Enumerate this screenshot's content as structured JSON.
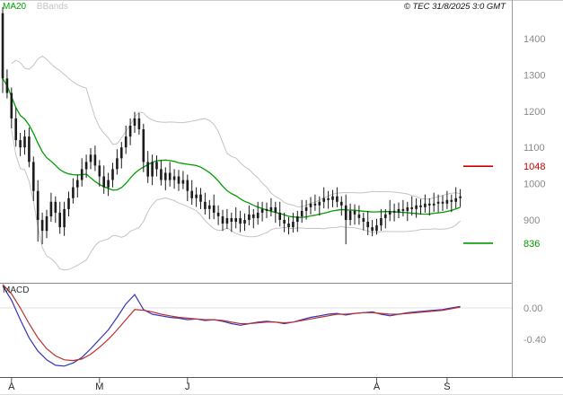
{
  "meta": {
    "copyright": "© TEC 31/8/2025 3:0 GMT"
  },
  "legend": {
    "ma20": "MA20",
    "bbands": "BBands",
    "macd": "MACD"
  },
  "colors": {
    "candle": "#1c1c1c",
    "ma20": "#00a000",
    "bbands": "#c4c4c4",
    "macd_blue": "#3333bb",
    "macd_red": "#bb3030",
    "level_red": "#cc0000",
    "level_green": "#009900",
    "axis_text": "#8a8a8a",
    "month_text": "#222222"
  },
  "chart_data": [
    {
      "type": "candlestick",
      "title": "",
      "y_axis": {
        "ticks": [
          1400,
          1300,
          1200,
          1100,
          1000,
          900
        ],
        "range": [
          760,
          1505
        ]
      },
      "x_axis": {
        "months": [
          {
            "label": "A",
            "index": 2
          },
          {
            "label": "M",
            "index": 22
          },
          {
            "label": "J",
            "index": 42
          },
          {
            "label": "A",
            "index": 85
          },
          {
            "label": "S",
            "index": 101
          }
        ]
      },
      "levels": [
        {
          "name": "resistance",
          "label": "1048",
          "value": 1048,
          "color_key": "level_red"
        },
        {
          "name": "support",
          "label": "836",
          "value": 836,
          "color_key": "level_green"
        }
      ],
      "overlays": [
        {
          "name": "MA20",
          "period": 20
        },
        {
          "name": "BBands",
          "period": 20,
          "stdev_mult": 2
        }
      ],
      "ohlc": {
        "open": [
          1470,
          1290,
          1250,
          1180,
          1120,
          1100,
          1130,
          1060,
          980,
          900,
          870,
          910,
          950,
          920,
          880,
          930,
          960,
          990,
          1010,
          1040,
          1060,
          1080,
          1050,
          1020,
          990,
          1010,
          1040,
          1070,
          1100,
          1130,
          1160,
          1180,
          1150,
          1060,
          1020,
          1060,
          1040,
          1010,
          1030,
          1010,
          1020,
          1000,
          1010,
          980,
          960,
          970,
          950,
          930,
          940,
          920,
          910,
          890,
          905,
          895,
          905,
          890,
          900,
          915,
          905,
          920,
          930,
          925,
          935,
          920,
          900,
          890,
          880,
          895,
          910,
          925,
          935,
          945,
          940,
          950,
          960,
          955,
          965,
          950,
          940,
          900,
          925,
          915,
          905,
          895,
          880,
          870,
          885,
          905,
          915,
          925,
          920,
          930,
          925,
          935,
          930,
          940,
          935,
          945,
          940,
          945,
          950,
          945,
          955,
          950,
          960
        ],
        "high": [
          1487,
          1315,
          1265,
          1210,
          1140,
          1148,
          1155,
          1075,
          1010,
          920,
          928,
          975,
          965,
          950,
          950,
          978,
          1015,
          1025,
          1070,
          1080,
          1098,
          1105,
          1065,
          1050,
          1030,
          1058,
          1095,
          1115,
          1160,
          1180,
          1198,
          1195,
          1165,
          1090,
          1080,
          1078,
          1065,
          1045,
          1060,
          1040,
          1038,
          1035,
          1025,
          1010,
          990,
          988,
          975,
          955,
          970,
          940,
          928,
          930,
          920,
          935,
          925,
          918,
          940,
          930,
          950,
          950,
          948,
          960,
          950,
          950,
          920,
          908,
          920,
          925,
          955,
          955,
          963,
          970,
          965,
          990,
          980,
          983,
          990,
          965,
          970,
          945,
          943,
          940,
          920,
          925,
          900,
          903,
          930,
          930,
          955,
          945,
          948,
          955,
          950,
          965,
          960,
          958,
          970,
          960,
          975,
          970,
          968,
          980,
          970,
          990,
          985
        ],
        "low": [
          1250,
          1235,
          1152,
          1102,
          1076,
          1080,
          1045,
          952,
          840,
          833,
          850,
          895,
          892,
          862,
          856,
          910,
          945,
          962,
          992,
          1016,
          1040,
          1035,
          992,
          972,
          966,
          990,
          1025,
          1042,
          1082,
          1106,
          1140,
          1135,
          1032,
          1002,
          996,
          1020,
          995,
          982,
          992,
          986,
          980,
          985,
          952,
          942,
          936,
          930,
          915,
          902,
          902,
          886,
          870,
          875,
          867,
          877,
          866,
          870,
          885,
          877,
          887,
          896,
          905,
          910,
          892,
          882,
          866,
          860,
          865,
          867,
          892,
          901,
          915,
          925,
          912,
          932,
          931,
          935,
          935,
          912,
          833,
          885,
          887,
          887,
          871,
          858,
          855,
          860,
          870,
          877,
          897,
          896,
          905,
          910,
          897,
          912,
          906,
          915,
          920,
          912,
          922,
          921,
          925,
          930,
          922,
          932,
          936
        ],
        "close": [
          1290,
          1250,
          1180,
          1120,
          1100,
          1130,
          1060,
          980,
          900,
          870,
          910,
          950,
          920,
          880,
          930,
          960,
          990,
          1010,
          1040,
          1060,
          1080,
          1050,
          1020,
          990,
          1010,
          1040,
          1070,
          1100,
          1130,
          1160,
          1180,
          1150,
          1060,
          1020,
          1060,
          1040,
          1010,
          1030,
          1010,
          1020,
          1000,
          1010,
          980,
          960,
          970,
          950,
          930,
          940,
          920,
          910,
          890,
          905,
          895,
          905,
          890,
          900,
          915,
          905,
          920,
          930,
          925,
          935,
          920,
          900,
          890,
          880,
          895,
          910,
          925,
          935,
          945,
          940,
          950,
          960,
          955,
          965,
          950,
          940,
          900,
          925,
          915,
          905,
          895,
          880,
          870,
          885,
          905,
          915,
          925,
          920,
          930,
          925,
          935,
          930,
          940,
          935,
          945,
          940,
          945,
          950,
          945,
          955,
          950,
          960,
          965
        ]
      }
    },
    {
      "type": "line",
      "name": "MACD",
      "index_step": 2,
      "y_axis": {
        "ticks": [
          {
            "label": "0.00",
            "value": 0
          },
          {
            "label": "-0.40",
            "value": -0.4
          }
        ]
      },
      "series": [
        {
          "name": "MACD",
          "color_key": "macd_blue",
          "values": [
            0.28,
            0.1,
            -0.15,
            -0.38,
            -0.55,
            -0.66,
            -0.73,
            -0.74,
            -0.7,
            -0.63,
            -0.52,
            -0.4,
            -0.28,
            -0.12,
            0.05,
            0.17,
            -0.02,
            -0.08,
            -0.1,
            -0.12,
            -0.13,
            -0.15,
            -0.14,
            -0.16,
            -0.15,
            -0.17,
            -0.2,
            -0.22,
            -0.2,
            -0.18,
            -0.17,
            -0.18,
            -0.2,
            -0.18,
            -0.15,
            -0.12,
            -0.1,
            -0.08,
            -0.07,
            -0.09,
            -0.07,
            -0.06,
            -0.05,
            -0.08,
            -0.1,
            -0.08,
            -0.06,
            -0.05,
            -0.04,
            -0.03,
            -0.02,
            0.0,
            0.02
          ]
        },
        {
          "name": "Signal",
          "color_key": "macd_red",
          "values": [
            0.3,
            0.18,
            0.0,
            -0.2,
            -0.38,
            -0.52,
            -0.61,
            -0.66,
            -0.67,
            -0.65,
            -0.59,
            -0.5,
            -0.4,
            -0.28,
            -0.15,
            -0.02,
            -0.03,
            -0.05,
            -0.08,
            -0.1,
            -0.12,
            -0.13,
            -0.14,
            -0.15,
            -0.15,
            -0.16,
            -0.18,
            -0.2,
            -0.2,
            -0.19,
            -0.18,
            -0.18,
            -0.19,
            -0.18,
            -0.16,
            -0.14,
            -0.12,
            -0.1,
            -0.08,
            -0.08,
            -0.07,
            -0.06,
            -0.06,
            -0.07,
            -0.08,
            -0.08,
            -0.07,
            -0.06,
            -0.05,
            -0.04,
            -0.03,
            -0.01,
            0.01
          ]
        }
      ]
    }
  ]
}
